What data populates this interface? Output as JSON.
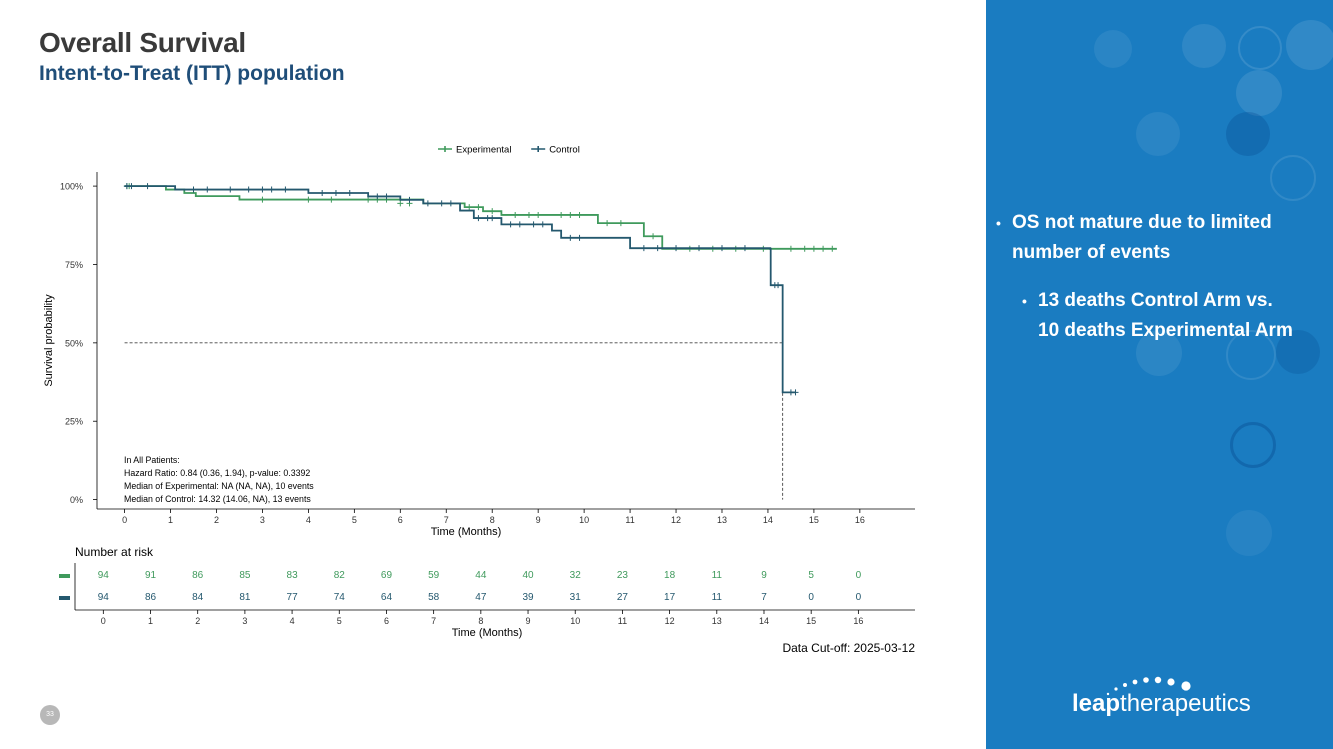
{
  "slide": {
    "title": "Overall Survival",
    "subtitle": "Intent-to-Treat (ITT) population",
    "data_cutoff": "Data Cut-off: 2025-03-12",
    "page_number": "33"
  },
  "sidebar": {
    "bullet1": "OS not mature due to limited number of events",
    "bullet2_line1": "13 deaths Control Arm vs.",
    "bullet2_line2": "10 deaths Experimental Arm",
    "logo_bold": "leap",
    "logo_light": "therapeutics",
    "bullet_glyph": "•"
  },
  "colors": {
    "experimental": "#3f9a5c",
    "control": "#24586e",
    "sidebar_bg": "#1a7cc1"
  },
  "chart_data": [
    {
      "type": "line",
      "subtype": "kaplan-meier",
      "xlabel": "Time (Months)",
      "ylabel": "Survival probability",
      "xlim": [
        -0.6,
        17.2
      ],
      "ylim": [
        -0.03,
        1.045
      ],
      "xticks": [
        0,
        1,
        2,
        3,
        4,
        5,
        6,
        7,
        8,
        9,
        10,
        11,
        12,
        13,
        14,
        15,
        16
      ],
      "yticks": [
        0,
        0.25,
        0.5,
        0.75,
        1.0
      ],
      "ytick_labels": [
        "0%",
        "25%",
        "50%",
        "75%",
        "100%"
      ],
      "legend_position": "top",
      "legend": [
        "Experimental",
        "Control"
      ],
      "median_reference": {
        "y": 0.5,
        "x_end": 14.32
      },
      "annotations": [
        "In All Patients:",
        "Hazard Ratio: 0.84 (0.36, 1.94), p-value: 0.3392",
        "Median of Experimental: NA (NA, NA), 10 events",
        "Median of Control: 14.32 (14.06, NA), 13 events"
      ],
      "series": [
        {
          "name": "Experimental",
          "steps": [
            [
              0,
              1.0
            ],
            [
              0.9,
              0.989
            ],
            [
              1.3,
              0.978
            ],
            [
              1.55,
              0.968
            ],
            [
              2.5,
              0.957
            ],
            [
              5.0,
              0.957
            ],
            [
              6.5,
              0.945
            ],
            [
              7.0,
              0.945
            ],
            [
              7.4,
              0.933
            ],
            [
              7.8,
              0.92
            ],
            [
              8.2,
              0.908
            ],
            [
              10.1,
              0.908
            ],
            [
              10.3,
              0.882
            ],
            [
              11.1,
              0.882
            ],
            [
              11.3,
              0.84
            ],
            [
              11.7,
              0.8
            ],
            [
              15.5,
              0.8
            ]
          ],
          "censors": [
            [
              0.05,
              1.0
            ],
            [
              0.1,
              1.0
            ],
            [
              3.0,
              0.957
            ],
            [
              4.0,
              0.957
            ],
            [
              4.5,
              0.957
            ],
            [
              5.3,
              0.957
            ],
            [
              5.5,
              0.957
            ],
            [
              5.7,
              0.957
            ],
            [
              6.0,
              0.945
            ],
            [
              6.2,
              0.945
            ],
            [
              7.5,
              0.933
            ],
            [
              7.7,
              0.933
            ],
            [
              8.0,
              0.92
            ],
            [
              8.5,
              0.908
            ],
            [
              8.8,
              0.908
            ],
            [
              9.0,
              0.908
            ],
            [
              9.5,
              0.908
            ],
            [
              9.7,
              0.908
            ],
            [
              9.9,
              0.908
            ],
            [
              10.5,
              0.882
            ],
            [
              10.8,
              0.882
            ],
            [
              11.5,
              0.84
            ],
            [
              12.3,
              0.8
            ],
            [
              12.8,
              0.8
            ],
            [
              13.3,
              0.8
            ],
            [
              13.9,
              0.8
            ],
            [
              14.5,
              0.8
            ],
            [
              14.8,
              0.8
            ],
            [
              15.0,
              0.8
            ],
            [
              15.2,
              0.8
            ],
            [
              15.4,
              0.8
            ]
          ]
        },
        {
          "name": "Control",
          "steps": [
            [
              0,
              1.0
            ],
            [
              1.1,
              0.989
            ],
            [
              2.0,
              0.989
            ],
            [
              4.0,
              0.978
            ],
            [
              5.3,
              0.967
            ],
            [
              6.0,
              0.956
            ],
            [
              6.5,
              0.945
            ],
            [
              7.3,
              0.922
            ],
            [
              7.6,
              0.898
            ],
            [
              8.2,
              0.878
            ],
            [
              9.3,
              0.858
            ],
            [
              9.5,
              0.835
            ],
            [
              10.9,
              0.835
            ],
            [
              11.0,
              0.802
            ],
            [
              14.05,
              0.8
            ],
            [
              14.06,
              0.684
            ],
            [
              14.32,
              0.342
            ],
            [
              14.6,
              0.342
            ]
          ],
          "censors": [
            [
              0.05,
              1.0
            ],
            [
              0.15,
              1.0
            ],
            [
              0.5,
              1.0
            ],
            [
              1.5,
              0.989
            ],
            [
              1.8,
              0.989
            ],
            [
              2.3,
              0.989
            ],
            [
              2.7,
              0.989
            ],
            [
              3.0,
              0.989
            ],
            [
              3.2,
              0.989
            ],
            [
              3.5,
              0.989
            ],
            [
              4.3,
              0.978
            ],
            [
              4.6,
              0.978
            ],
            [
              4.9,
              0.978
            ],
            [
              5.5,
              0.967
            ],
            [
              5.7,
              0.967
            ],
            [
              6.2,
              0.956
            ],
            [
              6.6,
              0.945
            ],
            [
              6.9,
              0.945
            ],
            [
              7.1,
              0.945
            ],
            [
              7.7,
              0.898
            ],
            [
              7.9,
              0.898
            ],
            [
              8.0,
              0.898
            ],
            [
              8.4,
              0.878
            ],
            [
              8.6,
              0.878
            ],
            [
              8.9,
              0.878
            ],
            [
              9.1,
              0.878
            ],
            [
              9.7,
              0.835
            ],
            [
              9.9,
              0.835
            ],
            [
              11.3,
              0.802
            ],
            [
              11.6,
              0.802
            ],
            [
              12.0,
              0.802
            ],
            [
              12.5,
              0.802
            ],
            [
              13.0,
              0.802
            ],
            [
              13.5,
              0.802
            ],
            [
              14.15,
              0.684
            ],
            [
              14.22,
              0.684
            ],
            [
              14.5,
              0.342
            ],
            [
              14.6,
              0.342
            ]
          ]
        }
      ]
    },
    {
      "type": "table",
      "title": "Number at risk",
      "xlabel": "Time (Months)",
      "xticks": [
        0,
        1,
        2,
        3,
        4,
        5,
        6,
        7,
        8,
        9,
        10,
        11,
        12,
        13,
        14,
        15,
        16
      ],
      "rows": [
        {
          "name": "Experimental",
          "values": [
            94,
            91,
            86,
            85,
            83,
            82,
            69,
            59,
            44,
            40,
            32,
            23,
            18,
            11,
            9,
            5,
            0
          ]
        },
        {
          "name": "Control",
          "values": [
            94,
            86,
            84,
            81,
            77,
            74,
            64,
            58,
            47,
            39,
            31,
            27,
            17,
            11,
            7,
            0,
            0
          ]
        }
      ]
    }
  ]
}
